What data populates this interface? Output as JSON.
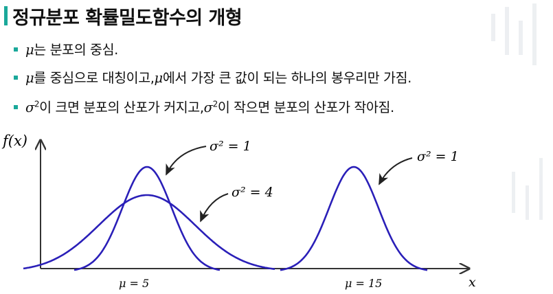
{
  "title": "정규분포 확률밀도함수의 개형",
  "bullets": [
    {
      "sym": "μ",
      "rest": "는 분포의 중심."
    },
    {
      "sym1": "μ",
      "mid": "를 중심으로 대칭이고,",
      "sym2": "μ",
      "rest": "에서 가장 큰 값이 되는 하나의 봉우리만 가짐."
    },
    {
      "sym1": "σ",
      "sup1": "2",
      "mid": "이 크면 분포의 산포가 커지고,",
      "sym2": "σ",
      "sup2": "2",
      "rest": "이 작으면 분포의 산포가 작아짐."
    }
  ],
  "graph": {
    "y_axis_label": "f(x)",
    "x_axis_label": "x",
    "labels": [
      {
        "id": "mu5",
        "text": "μ = 5"
      },
      {
        "id": "mu15",
        "text": "μ = 15"
      },
      {
        "id": "var1_left",
        "text": "σ² = 1"
      },
      {
        "id": "var4_left",
        "text": "σ² = 4"
      },
      {
        "id": "var1_right",
        "text": "σ² = 1"
      }
    ]
  },
  "colors": {
    "accent": "#1aa89a",
    "curve": "#2a1fb8",
    "axis": "#333333",
    "arrow": "#222222"
  }
}
